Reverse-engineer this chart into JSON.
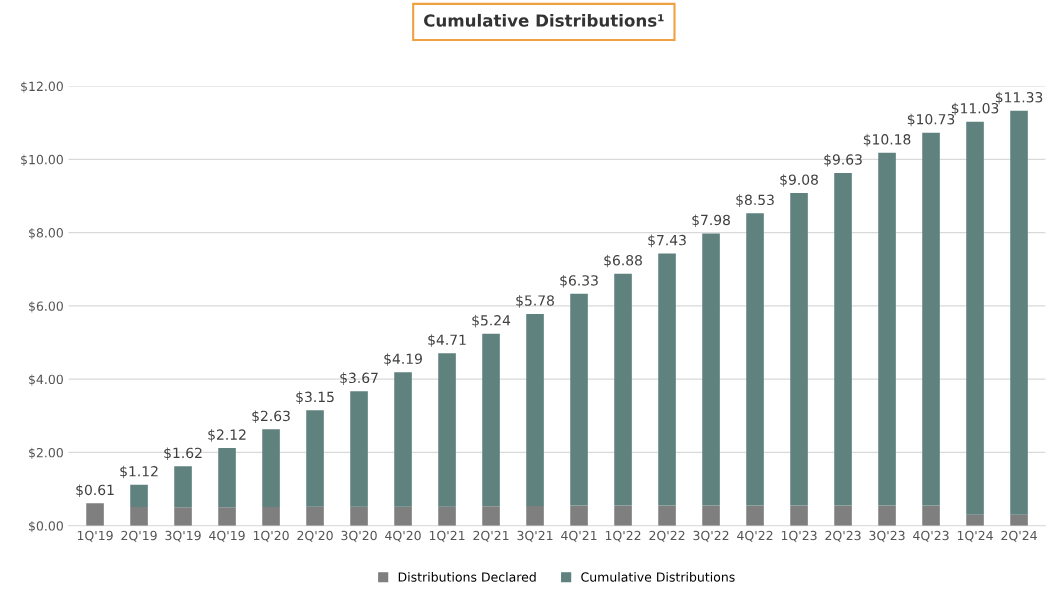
{
  "chart_data": {
    "type": "bar",
    "title": "Cumulative Distributions¹",
    "stacked": true,
    "categories": [
      "1Q'19",
      "2Q'19",
      "3Q'19",
      "4Q'19",
      "1Q'20",
      "2Q'20",
      "3Q'20",
      "4Q'20",
      "1Q'21",
      "2Q'21",
      "3Q'21",
      "4Q'21",
      "1Q'22",
      "2Q'22",
      "3Q'22",
      "4Q'22",
      "1Q'23",
      "2Q'23",
      "3Q'23",
      "4Q'23",
      "1Q'24",
      "2Q'24"
    ],
    "series": [
      {
        "name": "Distributions Declared",
        "color": "#7f7f7f",
        "values": [
          0.61,
          0.51,
          0.5,
          0.5,
          0.51,
          0.52,
          0.52,
          0.52,
          0.52,
          0.53,
          0.54,
          0.55,
          0.55,
          0.55,
          0.55,
          0.55,
          0.55,
          0.55,
          0.55,
          0.55,
          0.3,
          0.3
        ]
      },
      {
        "name": "Cumulative Distributions",
        "color": "#5f827e",
        "values": [
          0,
          0.61,
          1.12,
          1.62,
          2.12,
          2.63,
          3.15,
          3.67,
          4.19,
          4.71,
          5.24,
          5.78,
          6.33,
          6.88,
          7.43,
          7.98,
          8.53,
          9.08,
          9.63,
          10.18,
          10.73,
          11.03
        ]
      }
    ],
    "totals": [
      "$0.61",
      "$1.12",
      "$1.62",
      "$2.12",
      "$2.63",
      "$3.15",
      "$3.67",
      "$4.19",
      "$4.71",
      "$5.24",
      "$5.78",
      "$6.33",
      "$6.88",
      "$7.43",
      "$7.98",
      "$8.53",
      "$9.08",
      "$9.63",
      "$10.18",
      "$10.73",
      "$11.03",
      "$11.33"
    ],
    "ylim": [
      0,
      12
    ],
    "yticks": [
      {
        "value": 0,
        "label": "$0.00"
      },
      {
        "value": 2,
        "label": "$2.00"
      },
      {
        "value": 4,
        "label": "$4.00"
      },
      {
        "value": 6,
        "label": "$6.00"
      },
      {
        "value": 8,
        "label": "$8.00"
      },
      {
        "value": 10,
        "label": "$10.00"
      },
      {
        "value": 12,
        "label": "$12.00"
      }
    ],
    "grid": "y",
    "legend": "bottom"
  }
}
